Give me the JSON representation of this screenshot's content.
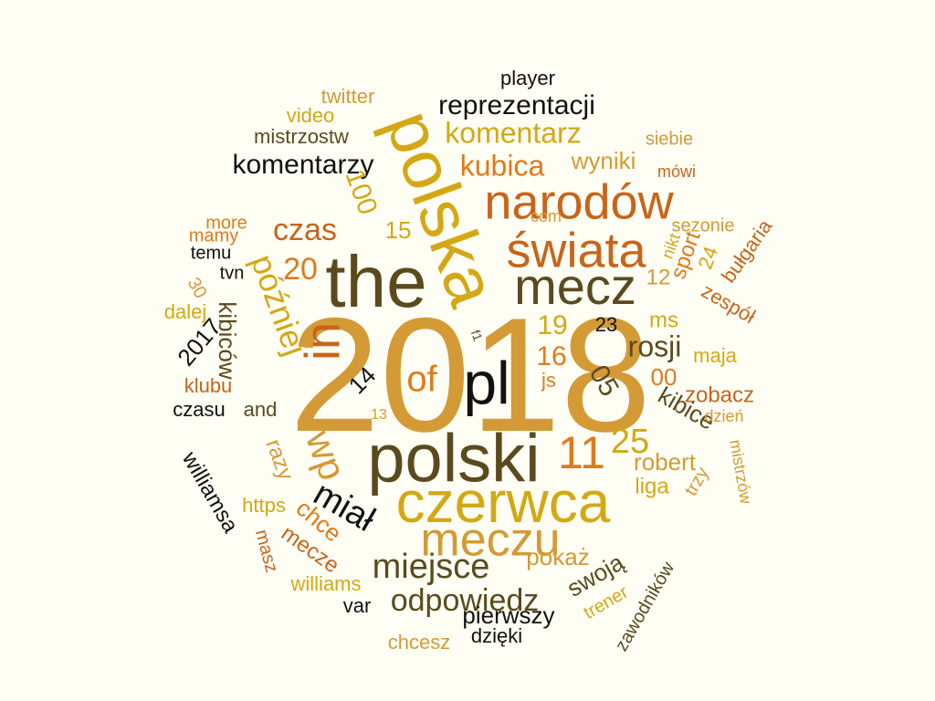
{
  "palette": {
    "background": "#fefef4",
    "gold": "#d49a35",
    "olive": "#5a4a1e",
    "yellow": "#d4a814",
    "orange": "#e07a1c",
    "rust": "#c8641a",
    "black": "#111111"
  },
  "words": [
    {
      "text": "2018",
      "color": "gold"
    },
    {
      "text": "the",
      "color": "olive"
    },
    {
      "text": "polska",
      "color": "yellow"
    },
    {
      "text": "polski",
      "color": "olive"
    },
    {
      "text": "czerwca",
      "color": "yellow"
    },
    {
      "text": "meczu",
      "color": "gold"
    },
    {
      "text": "mecz",
      "color": "olive"
    },
    {
      "text": "narodów",
      "color": "rust"
    },
    {
      "text": "świata",
      "color": "rust"
    },
    {
      "text": "pl",
      "color": "black"
    },
    {
      "text": "in",
      "color": "rust"
    },
    {
      "text": "of",
      "color": "orange"
    },
    {
      "text": "wp",
      "color": "gold"
    },
    {
      "text": "11",
      "color": "orange"
    },
    {
      "text": "25",
      "color": "yellow"
    },
    {
      "text": "miejsce",
      "color": "olive"
    },
    {
      "text": "odpowiedz",
      "color": "olive"
    },
    {
      "text": "reprezentacji",
      "color": "black"
    },
    {
      "text": "komentarz",
      "color": "yellow"
    },
    {
      "text": "komentarzy",
      "color": "black"
    },
    {
      "text": "kubica",
      "color": "orange"
    },
    {
      "text": "wyniki",
      "color": "gold"
    },
    {
      "text": "mistrzostw",
      "color": "olive"
    },
    {
      "text": "video",
      "color": "yellow"
    },
    {
      "text": "twitter",
      "color": "gold"
    },
    {
      "text": "player",
      "color": "black"
    },
    {
      "text": "siebie",
      "color": "gold"
    },
    {
      "text": "mówi",
      "color": "rust"
    },
    {
      "text": "czas",
      "color": "rust"
    },
    {
      "text": "20",
      "color": "orange"
    },
    {
      "text": "później",
      "color": "yellow"
    },
    {
      "text": "2017",
      "color": "black"
    },
    {
      "text": "kibiców",
      "color": "olive"
    },
    {
      "text": "dalej",
      "color": "yellow"
    },
    {
      "text": "30",
      "color": "gold"
    },
    {
      "text": "tvn",
      "color": "black"
    },
    {
      "text": "temu",
      "color": "black"
    },
    {
      "text": "mamy",
      "color": "orange"
    },
    {
      "text": "more",
      "color": "orange"
    },
    {
      "text": "com",
      "color": "gold"
    },
    {
      "text": "15",
      "color": "yellow"
    },
    {
      "text": "100",
      "color": "yellow"
    },
    {
      "text": "sezonie",
      "color": "gold"
    },
    {
      "text": "nikt",
      "color": "yellow"
    },
    {
      "text": "sport",
      "color": "orange"
    },
    {
      "text": "24",
      "color": "yellow"
    },
    {
      "text": "bułgaria",
      "color": "rust"
    },
    {
      "text": "12",
      "color": "gold"
    },
    {
      "text": "zespół",
      "color": "rust"
    },
    {
      "text": "ms",
      "color": "yellow"
    },
    {
      "text": "19",
      "color": "yellow"
    },
    {
      "text": "23",
      "color": "black"
    },
    {
      "text": "rosji",
      "color": "olive"
    },
    {
      "text": "16",
      "color": "orange"
    },
    {
      "text": "maja",
      "color": "yellow"
    },
    {
      "text": "js",
      "color": "orange"
    },
    {
      "text": "00",
      "color": "orange"
    },
    {
      "text": "05",
      "color": "olive"
    },
    {
      "text": "f1",
      "color": "olive"
    },
    {
      "text": "zobacz",
      "color": "rust"
    },
    {
      "text": "kibice",
      "color": "olive"
    },
    {
      "text": "dzień",
      "color": "gold"
    },
    {
      "text": "robert",
      "color": "gold"
    },
    {
      "text": "mistrzów",
      "color": "gold"
    },
    {
      "text": "liga",
      "color": "yellow"
    },
    {
      "text": "trzy",
      "color": "gold"
    },
    {
      "text": "klubu",
      "color": "rust"
    },
    {
      "text": "czasu",
      "color": "black"
    },
    {
      "text": "and",
      "color": "olive"
    },
    {
      "text": "14",
      "color": "black"
    },
    {
      "text": "13",
      "color": "gold"
    },
    {
      "text": "williamsa",
      "color": "black"
    },
    {
      "text": "razy",
      "color": "gold"
    },
    {
      "text": "miał",
      "color": "black"
    },
    {
      "text": "https",
      "color": "yellow"
    },
    {
      "text": "chce",
      "color": "orange"
    },
    {
      "text": "masz",
      "color": "rust"
    },
    {
      "text": "mecze",
      "color": "rust"
    },
    {
      "text": "williams",
      "color": "yellow"
    },
    {
      "text": "pokaż",
      "color": "gold"
    },
    {
      "text": "swoją",
      "color": "olive"
    },
    {
      "text": "var",
      "color": "black"
    },
    {
      "text": "pierwszy",
      "color": "black"
    },
    {
      "text": "trener",
      "color": "yellow"
    },
    {
      "text": "zawodników",
      "color": "olive"
    },
    {
      "text": "dzięki",
      "color": "black"
    },
    {
      "text": "chcesz",
      "color": "gold"
    }
  ]
}
